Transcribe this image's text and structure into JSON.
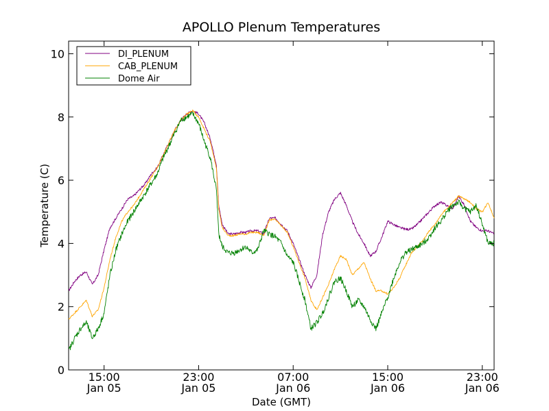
{
  "chart_data": {
    "type": "line",
    "title": "APOLLO Plenum Temperatures",
    "xlabel": "Date (GMT)",
    "ylabel": "Temperature (C)",
    "x_units": "hours since Jan 05 12:00 GMT",
    "xlim": [
      0,
      36
    ],
    "ylim": [
      0,
      10.4
    ],
    "yticks": [
      0,
      2,
      4,
      6,
      8,
      10
    ],
    "grid": false,
    "legend_position": "top-left",
    "xticks": [
      {
        "x": 3,
        "time": "15:00",
        "date": "Jan 05"
      },
      {
        "x": 11,
        "time": "23:00",
        "date": "Jan 05"
      },
      {
        "x": 19,
        "time": "07:00",
        "date": "Jan 06"
      },
      {
        "x": 27,
        "time": "15:00",
        "date": "Jan 06"
      },
      {
        "x": 35,
        "time": "23:00",
        "date": "Jan 06"
      }
    ],
    "series": [
      {
        "name": "DI_PLENUM",
        "color": "#800080",
        "x": [
          0,
          0.5,
          1,
          1.5,
          2,
          2.5,
          3,
          3.5,
          4,
          4.5,
          5,
          5.5,
          6,
          6.5,
          7,
          7.5,
          8,
          8.5,
          9,
          9.5,
          10,
          10.5,
          11,
          11.5,
          12,
          12.5,
          12.7,
          13,
          13.5,
          14,
          14.5,
          15,
          15.5,
          16,
          16.5,
          17,
          17.5,
          18,
          18.5,
          19,
          19.5,
          20,
          20.5,
          21,
          21.5,
          22,
          22.5,
          23,
          23.5,
          24,
          24.5,
          25,
          25.5,
          26,
          26.5,
          27,
          27.5,
          28,
          28.5,
          29,
          29.5,
          30,
          30.5,
          31,
          31.5,
          32,
          32.5,
          33,
          33.5,
          34,
          34.5,
          35,
          35.5,
          36
        ],
        "y": [
          2.5,
          2.8,
          3.0,
          3.1,
          2.7,
          3.0,
          3.8,
          4.5,
          4.8,
          5.1,
          5.4,
          5.5,
          5.7,
          5.9,
          6.2,
          6.4,
          6.8,
          7.2,
          7.6,
          7.9,
          8.1,
          8.2,
          8.1,
          7.8,
          7.3,
          6.5,
          5.2,
          4.6,
          4.3,
          4.3,
          4.35,
          4.35,
          4.4,
          4.4,
          4.3,
          4.8,
          4.8,
          4.6,
          4.4,
          4.0,
          3.5,
          3.0,
          2.6,
          3.0,
          4.3,
          5.0,
          5.4,
          5.6,
          5.2,
          4.7,
          4.3,
          4.0,
          3.6,
          3.75,
          4.2,
          4.7,
          4.6,
          4.5,
          4.45,
          4.45,
          4.6,
          4.8,
          5.0,
          5.2,
          5.3,
          5.2,
          5.1,
          5.5,
          5.2,
          4.7,
          4.5,
          4.4,
          4.4,
          4.3
        ]
      },
      {
        "name": "CAB_PLENUM",
        "color": "#ffa500",
        "x": [
          0,
          0.5,
          1,
          1.5,
          2,
          2.5,
          3,
          3.5,
          4,
          4.5,
          5,
          5.5,
          6,
          6.5,
          7,
          7.5,
          8,
          8.5,
          9,
          9.5,
          10,
          10.5,
          11,
          11.5,
          12,
          12.5,
          12.7,
          13,
          13.5,
          14,
          14.5,
          15,
          15.5,
          16,
          16.5,
          17,
          17.5,
          18,
          18.5,
          19,
          19.5,
          20,
          20.5,
          21,
          21.5,
          22,
          22.5,
          23,
          23.5,
          24,
          24.5,
          25,
          25.5,
          26,
          26.5,
          27,
          27.5,
          28,
          28.5,
          29,
          29.5,
          30,
          30.5,
          31,
          31.5,
          32,
          32.5,
          33,
          33.5,
          34,
          34.5,
          35,
          35.5,
          36
        ],
        "y": [
          1.6,
          1.8,
          2.0,
          2.2,
          1.7,
          1.9,
          2.6,
          3.5,
          4.2,
          4.7,
          5.0,
          5.2,
          5.5,
          5.8,
          6.1,
          6.4,
          6.8,
          7.2,
          7.6,
          7.9,
          8.1,
          8.2,
          8.0,
          7.6,
          7.2,
          6.4,
          5.1,
          4.5,
          4.25,
          4.25,
          4.3,
          4.3,
          4.35,
          4.35,
          4.25,
          4.75,
          4.75,
          4.55,
          4.35,
          3.9,
          3.4,
          2.9,
          2.2,
          1.9,
          2.3,
          2.7,
          3.2,
          3.6,
          3.5,
          3.0,
          3.2,
          3.4,
          2.9,
          2.5,
          2.5,
          2.4,
          2.6,
          2.9,
          3.3,
          3.7,
          3.9,
          4.1,
          4.4,
          4.6,
          4.9,
          5.1,
          5.3,
          5.5,
          5.4,
          5.3,
          5.1,
          5.0,
          5.3,
          4.8
        ]
      },
      {
        "name": "Dome Air",
        "color": "#008000",
        "x": [
          0,
          0.5,
          1,
          1.5,
          2,
          2.5,
          3,
          3.5,
          4,
          4.5,
          5,
          5.5,
          6,
          6.5,
          7,
          7.5,
          8,
          8.5,
          9,
          9.5,
          10,
          10.5,
          11,
          11.5,
          12,
          12.5,
          12.7,
          13,
          13.5,
          14,
          14.5,
          15,
          15.5,
          16,
          16.5,
          17,
          17.5,
          18,
          18.5,
          19,
          19.5,
          20,
          20.5,
          21,
          21.5,
          22,
          22.5,
          23,
          23.5,
          24,
          24.5,
          25,
          25.5,
          26,
          26.5,
          27,
          27.5,
          28,
          28.5,
          29,
          29.5,
          30,
          30.5,
          31,
          31.5,
          32,
          32.5,
          33,
          33.5,
          34,
          34.5,
          35,
          35.5,
          36
        ],
        "y": [
          0.6,
          1.0,
          1.3,
          1.5,
          1.0,
          1.3,
          1.8,
          3.0,
          3.8,
          4.3,
          4.7,
          5.0,
          5.3,
          5.6,
          5.9,
          6.2,
          6.7,
          7.1,
          7.5,
          7.9,
          8.0,
          8.1,
          7.8,
          7.2,
          6.7,
          5.7,
          4.3,
          3.9,
          3.7,
          3.7,
          3.8,
          3.9,
          3.7,
          3.8,
          4.4,
          4.3,
          4.2,
          4.0,
          3.6,
          3.4,
          2.8,
          2.2,
          1.3,
          1.5,
          1.8,
          2.3,
          2.8,
          2.9,
          2.5,
          2.0,
          2.2,
          2.0,
          1.6,
          1.3,
          1.8,
          2.3,
          2.9,
          3.4,
          3.7,
          3.8,
          3.9,
          4.0,
          4.2,
          4.5,
          4.7,
          5.0,
          5.2,
          5.3,
          5.1,
          5.0,
          5.2,
          4.6,
          4.0,
          4.0
        ]
      }
    ]
  }
}
